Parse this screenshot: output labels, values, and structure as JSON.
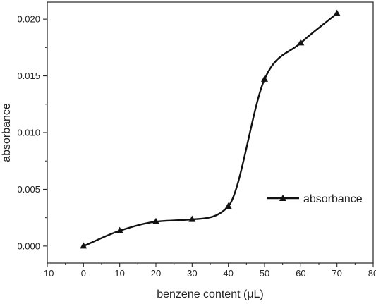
{
  "chart_data": {
    "type": "line",
    "title": "",
    "xlabel": "benzene content (μL)",
    "ylabel": "absorbance",
    "xlim": [
      -10,
      80
    ],
    "ylim": [
      -0.0015,
      0.0215
    ],
    "x_ticks": [
      -10,
      0,
      10,
      20,
      30,
      40,
      50,
      60,
      70,
      80
    ],
    "x_tick_labels": [
      "-10",
      "0",
      "10",
      "20",
      "30",
      "40",
      "50",
      "60",
      "70",
      "80"
    ],
    "y_ticks": [
      0.0,
      0.005,
      0.01,
      0.015,
      0.02
    ],
    "y_tick_labels": [
      "0.000",
      "0.005",
      "0.010",
      "0.015",
      "0.020"
    ],
    "grid": false,
    "legend_position": "right",
    "series": [
      {
        "name": "absorbance",
        "marker": "triangle",
        "color": "#111111",
        "x": [
          0,
          10,
          20,
          30,
          40,
          50,
          60,
          70
        ],
        "y": [
          0.0,
          0.00135,
          0.00215,
          0.00235,
          0.0035,
          0.0147,
          0.0179,
          0.0205
        ]
      }
    ]
  }
}
